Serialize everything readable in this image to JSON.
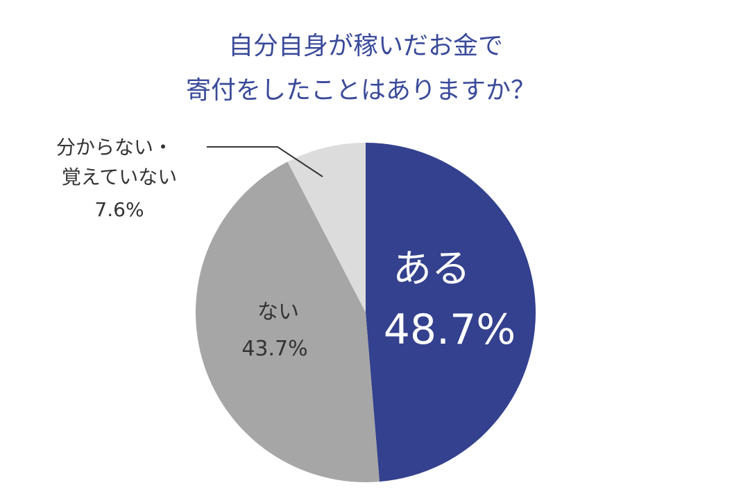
{
  "chart_data": {
    "type": "pie",
    "title_lines": [
      "自分自身が稼いだお金で",
      "寄付をしたことはありますか？"
    ],
    "start_angle_deg": 0,
    "direction": "clockwise",
    "slices": [
      {
        "label": "ある",
        "value": 48.7,
        "value_text": "48.7%",
        "color": "#33418e"
      },
      {
        "label": "ない",
        "value": 43.7,
        "value_text": "43.7%",
        "color": "#a6a6a6"
      },
      {
        "label_lines": [
          "分からない・",
          "覚えていない"
        ],
        "value": 7.6,
        "value_text": "7.6%",
        "color": "#dcdcdc"
      }
    ]
  }
}
